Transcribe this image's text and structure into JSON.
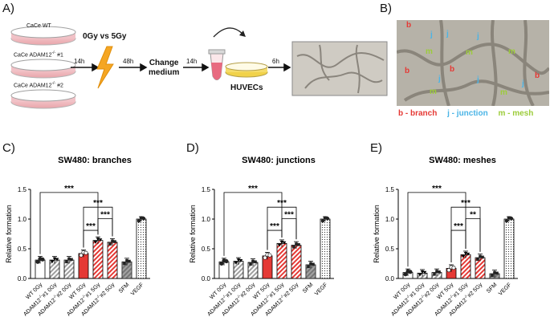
{
  "panels": {
    "a": {
      "letter": "A)",
      "dishes": [
        {
          "label": "CaCe WT"
        },
        {
          "label": "CaCe ADAM12",
          "sup": "-/-",
          "suffix": " #1"
        },
        {
          "label": "CaCe ADAM12",
          "sup": "-/-",
          "suffix": " #2"
        }
      ],
      "treatment": "0Gy vs 5Gy",
      "time1": "14h",
      "time2": "48h",
      "change_medium_line1": "Change",
      "change_medium_line2": "medium",
      "time3": "14h",
      "huvecs": "HUVECs",
      "time4": "6h"
    },
    "b": {
      "letter": "B)",
      "markers": [
        {
          "t": "b"
        },
        {
          "t": "j"
        },
        {
          "t": "j"
        },
        {
          "t": "j"
        },
        {
          "t": "m"
        },
        {
          "t": "m"
        },
        {
          "t": "m"
        },
        {
          "t": "b"
        },
        {
          "t": "b"
        },
        {
          "t": "j"
        },
        {
          "t": "j"
        },
        {
          "t": "m"
        },
        {
          "t": "m"
        },
        {
          "t": "j"
        },
        {
          "t": "b"
        }
      ],
      "legend": [
        {
          "text": "b - branch",
          "color": "#e53935"
        },
        {
          "text": "j - junction",
          "color": "#4ab4e6"
        },
        {
          "text": "m - mesh",
          "color": "#9ccc3a"
        }
      ]
    }
  },
  "colors": {
    "red": "#e53935",
    "gray": "#9e9e9e",
    "darkgray": "#555555"
  },
  "chart_data": [
    {
      "letter": "C)",
      "type": "bar",
      "title": "SW480: branches",
      "ylabel": "Relative formation",
      "ylim": [
        0,
        1.5
      ],
      "yticks": [
        "0.0",
        "0.5",
        "1.0",
        "1.5"
      ],
      "categories": [
        {
          "label": "WT 0Gy"
        },
        {
          "label": "ADAM12",
          "sup": "-/-",
          "suffix": "#1 0Gy"
        },
        {
          "label": "ADAM12",
          "sup": "-/-",
          "suffix": "#2 0Gy"
        },
        {
          "label": "WT 5Gy"
        },
        {
          "label": "ADAM12",
          "sup": "-/-",
          "suffix": "#1 5Gy"
        },
        {
          "label": "ADAM12",
          "sup": "-/-",
          "suffix": "#2 5Gy"
        },
        {
          "label": "SFM"
        },
        {
          "label": "VEGF"
        }
      ],
      "values": [
        0.31,
        0.31,
        0.31,
        0.42,
        0.64,
        0.61,
        0.28,
        1.0
      ],
      "significance": [
        {
          "from": 0,
          "to": 4,
          "label": "***"
        },
        {
          "from": 3,
          "to": 5,
          "label": "***"
        },
        {
          "from": 4,
          "to": 5,
          "label": "***"
        },
        {
          "from": 3,
          "to": 4,
          "label": "***"
        }
      ]
    },
    {
      "letter": "D)",
      "type": "bar",
      "title": "SW480: junctions",
      "ylabel": "Relative formation",
      "ylim": [
        0,
        1.5
      ],
      "yticks": [
        "0.0",
        "0.5",
        "1.0",
        "1.5"
      ],
      "categories": [
        {
          "label": "WT 0Gy"
        },
        {
          "label": "ADAM12",
          "sup": "-/-",
          "suffix": "#1 0Gy"
        },
        {
          "label": "ADAM12",
          "sup": "-/-",
          "suffix": "#2 0Gy"
        },
        {
          "label": "WT 5Gy"
        },
        {
          "label": "ADAM12",
          "sup": "-/-",
          "suffix": "#1 5Gy"
        },
        {
          "label": "ADAM12",
          "sup": "-/-",
          "suffix": "#2 5Gy"
        },
        {
          "label": "SFM"
        },
        {
          "label": "VEGF"
        }
      ],
      "values": [
        0.28,
        0.29,
        0.27,
        0.38,
        0.59,
        0.56,
        0.23,
        1.0
      ],
      "significance": [
        {
          "from": 0,
          "to": 4,
          "label": "***"
        },
        {
          "from": 3,
          "to": 5,
          "label": "***"
        },
        {
          "from": 4,
          "to": 5,
          "label": "***"
        },
        {
          "from": 3,
          "to": 4,
          "label": "***"
        }
      ]
    },
    {
      "letter": "E)",
      "type": "bar",
      "title": "SW480: meshes",
      "ylabel": "Relative formation",
      "ylim": [
        0,
        1.5
      ],
      "yticks": [
        "0.0",
        "0.5",
        "1.0",
        "1.5"
      ],
      "categories": [
        {
          "label": "WT 0Gy"
        },
        {
          "label": "ADAM12",
          "sup": "-/-",
          "suffix": "#1 0Gy"
        },
        {
          "label": "ADAM12",
          "sup": "-/-",
          "suffix": "#2 0Gy"
        },
        {
          "label": "WT 5Gy"
        },
        {
          "label": "ADAM12",
          "sup": "-/-",
          "suffix": "#1 5Gy"
        },
        {
          "label": "ADAM12",
          "sup": "-/-",
          "suffix": "#2 5Gy"
        },
        {
          "label": "SFM"
        },
        {
          "label": "VEGF"
        }
      ],
      "values": [
        0.1,
        0.09,
        0.1,
        0.17,
        0.4,
        0.35,
        0.08,
        1.0
      ],
      "significance": [
        {
          "from": 0,
          "to": 4,
          "label": "***"
        },
        {
          "from": 3,
          "to": 5,
          "label": "***"
        },
        {
          "from": 4,
          "to": 5,
          "label": "**"
        },
        {
          "from": 3,
          "to": 4,
          "label": "***"
        }
      ]
    }
  ]
}
